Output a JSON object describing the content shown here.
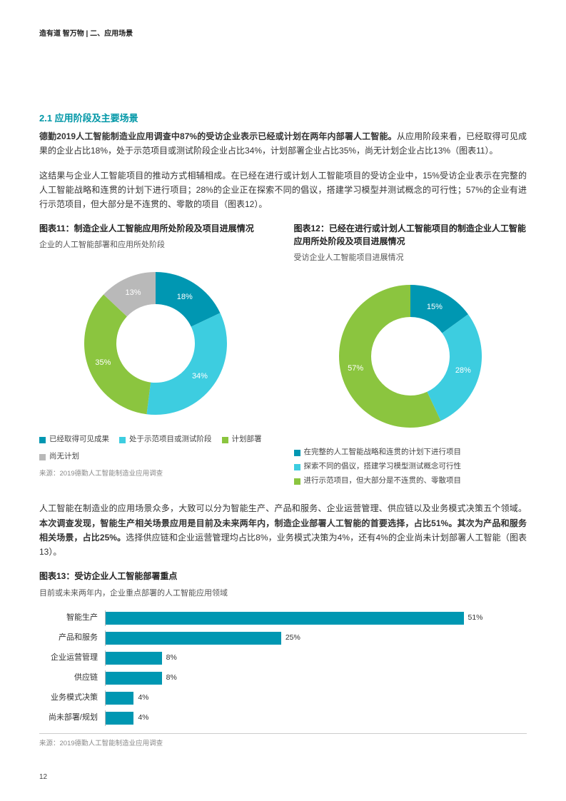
{
  "header": {
    "crumb": "造有道 智万物 | 二、应用场景"
  },
  "section": {
    "title": "2.1 应用阶段及主要场景"
  },
  "para1_bold": "德勤2019人工智能制造业应用调查中87%的受访企业表示已经或计划在两年内部署人工智能。",
  "para1_rest": "从应用阶段来看，已经取得可见成果的企业占比18%，处于示范项目或测试阶段企业占比34%，计划部署企业占比35%，尚无计划企业占比13%（图表11）。",
  "para2": "这结果与企业人工智能项目的推动方式相辅相成。在已经在进行或计划人工智能项目的受访企业中，15%受访企业表示在完整的人工智能战略和连贯的计划下进行项目；28%的企业正在探索不同的倡议，搭建学习模型并测试概念的可行性；57%的企业有进行示范项目，但大部分是不连贯的、零散的项目（图表12）。",
  "chart11": {
    "title": "图表11：制造企业人工智能应用所处阶段及项目进展情况",
    "subtitle": "企业的人工智能部署和应用所处阶段",
    "type": "donut",
    "slices": [
      {
        "label": "已经取得可见成果",
        "value": 18,
        "color": "#0097b2",
        "text": "18%"
      },
      {
        "label": "处于示范项目或测试阶段",
        "value": 34,
        "color": "#3dcde0",
        "text": "34%"
      },
      {
        "label": "计划部署",
        "value": 35,
        "color": "#8bc53f",
        "text": "35%"
      },
      {
        "label": "尚无计划",
        "value": 13,
        "color": "#b9b9b9",
        "text": "13%"
      }
    ],
    "inner_ratio": 0.55
  },
  "chart12": {
    "title": "图表12：已经在进行或计划人工智能项目的制造企业人工智能应用所处阶段及项目进展情况",
    "subtitle": "受访企业人工智能项目进展情况",
    "type": "donut",
    "slices": [
      {
        "label": "在完整的人工智能战略和连贯的计划下进行项目",
        "value": 15,
        "color": "#0097b2",
        "text": "15%"
      },
      {
        "label": "探索不同的倡议，搭建学习模型测试概念可行性",
        "value": 28,
        "color": "#3dcde0",
        "text": "28%"
      },
      {
        "label": "进行示范项目，但大部分是不连贯的、零散项目",
        "value": 57,
        "color": "#8bc53f",
        "text": "57%"
      }
    ],
    "inner_ratio": 0.55
  },
  "source": "来源：2019德勤人工智能制造业应用调查",
  "para3_a": "人工智能在制造业的应用场景众多，大致可以分为智能生产、产品和服务、企业运营管理、供应链以及业务模式决策五个领域。",
  "para3_bold": "本次调查发现，智能生产相关场景应用是目前及未来两年内，制造企业部署人工智能的首要选择，占比51%。其次为产品和服务相关场景，占比25%。",
  "para3_b": "选择供应链和企业运营管理均占比8%，业务模式决策为4%，还有4%的企业尚未计划部署人工智能（图表13）。",
  "chart13": {
    "title": "图表13：受访企业人工智能部署重点",
    "subtitle": "目前或未来两年内，企业重点部署的人工智能应用领域",
    "type": "bar",
    "max": 60,
    "bar_color": "#0097b2",
    "items": [
      {
        "label": "智能生产",
        "value": 51,
        "text": "51%"
      },
      {
        "label": "产品和服务",
        "value": 25,
        "text": "25%"
      },
      {
        "label": "企业运营管理",
        "value": 8,
        "text": "8%"
      },
      {
        "label": "供应链",
        "value": 8,
        "text": "8%"
      },
      {
        "label": "业务模式决策",
        "value": 4,
        "text": "4%"
      },
      {
        "label": "尚未部署/规划",
        "value": 4,
        "text": "4%"
      }
    ]
  },
  "page_number": "12"
}
